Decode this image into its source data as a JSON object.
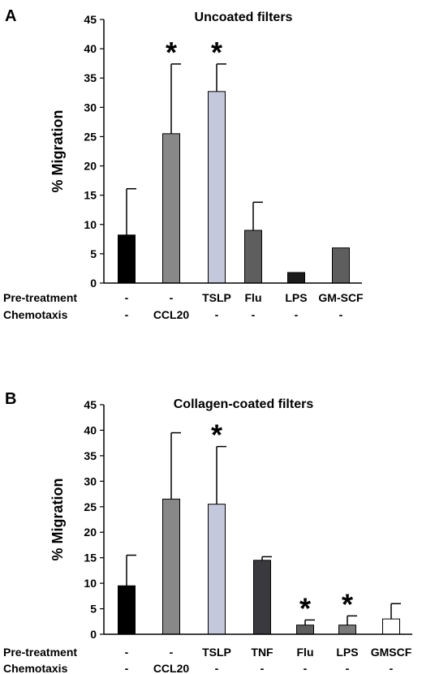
{
  "chart_data": [
    {
      "type": "bar",
      "panel": "A",
      "title": "Uncoated filters",
      "ylabel": "% Migration",
      "ylim": [
        0,
        45
      ],
      "yticks": [
        0,
        5,
        10,
        15,
        20,
        25,
        30,
        35,
        40,
        45
      ],
      "row_labels": [
        "Pre-treatment",
        "Chemotaxis"
      ],
      "pretreatment": [
        "-",
        "-",
        "TSLP",
        "Flu",
        "LPS",
        "GM-SCF"
      ],
      "chemotaxis": [
        "-",
        "CCL20",
        "-",
        "-",
        "-",
        "-"
      ],
      "values": [
        8.2,
        25.5,
        32.7,
        9.0,
        1.8,
        6.0
      ],
      "error_upper": [
        16.1,
        37.4,
        37.4,
        13.8,
        1.8,
        6.0
      ],
      "significant": [
        false,
        true,
        true,
        false,
        false,
        false
      ],
      "significance_marker": "*",
      "bar_colors": [
        "#000000",
        "#888888",
        "#c4c8dc",
        "#5e5e5e",
        "#1c1c1c",
        "#5e5e5e"
      ]
    },
    {
      "type": "bar",
      "panel": "B",
      "title": "Collagen-coated filters",
      "ylabel": "% Migration",
      "ylim": [
        0,
        45
      ],
      "yticks": [
        0,
        5,
        10,
        15,
        20,
        25,
        30,
        35,
        40,
        45
      ],
      "row_labels": [
        "Pre-treatment",
        "Chemotaxis"
      ],
      "pretreatment": [
        "-",
        "-",
        "TSLP",
        "TNF",
        "Flu",
        "LPS",
        "GMSCF"
      ],
      "chemotaxis": [
        "-",
        "CCL20",
        "-",
        "-",
        "-",
        "-",
        "-"
      ],
      "values": [
        9.5,
        26.5,
        25.5,
        14.5,
        1.8,
        1.8,
        3.0
      ],
      "error_upper": [
        15.5,
        39.5,
        36.8,
        15.2,
        2.8,
        3.6,
        6.0
      ],
      "significant": [
        false,
        false,
        true,
        false,
        true,
        true,
        false
      ],
      "significance_marker": "*",
      "bar_colors": [
        "#000000",
        "#888888",
        "#c4c8dc",
        "#3a3a3e",
        "#5e5e5e",
        "#7a7a7a",
        "#ffffff"
      ]
    }
  ]
}
